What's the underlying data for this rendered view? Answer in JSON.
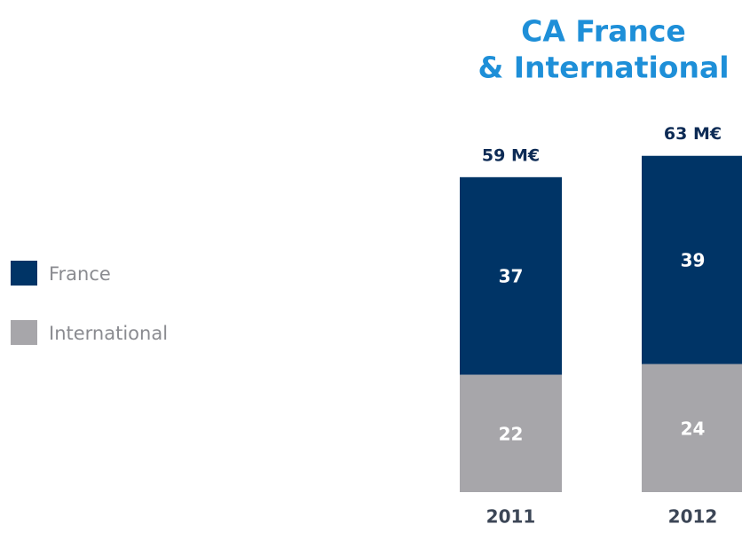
{
  "chart_data": {
    "type": "stacked-bar",
    "title": [
      "CA France",
      "& International"
    ],
    "categories": [
      "2011",
      "2012"
    ],
    "series": [
      {
        "name": "International",
        "color": "#a7a6aa",
        "values": [
          22,
          24
        ]
      },
      {
        "name": "France",
        "color": "#003466",
        "values": [
          37,
          39
        ]
      }
    ],
    "totals": {
      "values": [
        59,
        63
      ],
      "value_labels": [
        "59 M€",
        "63 M€"
      ]
    }
  }
}
